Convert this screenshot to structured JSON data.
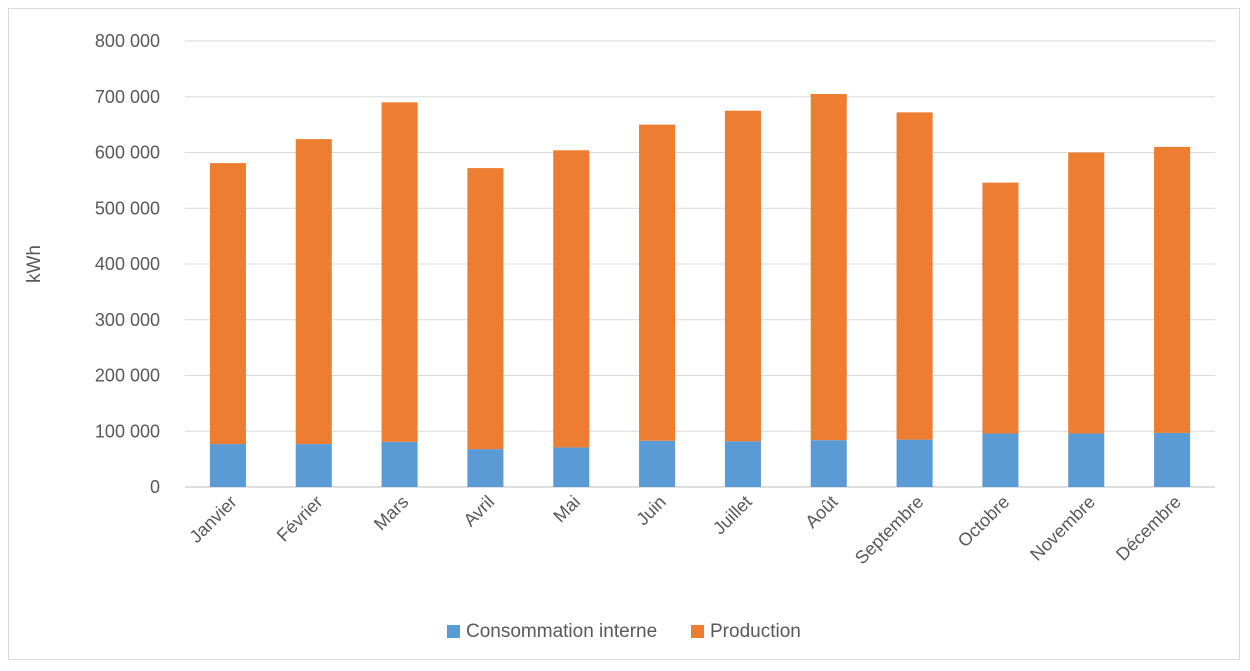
{
  "chart_data": {
    "type": "bar",
    "stacked": true,
    "categories": [
      "Janvier",
      "Février",
      "Mars",
      "Avril",
      "Mai",
      "Juin",
      "Juillet",
      "Août",
      "Septembre",
      "Octobre",
      "Novembre",
      "Décembre"
    ],
    "series": [
      {
        "name": "Consommation interne",
        "color": "#5b9bd5",
        "values": [
          77000,
          77000,
          81000,
          68000,
          71000,
          83000,
          82000,
          84000,
          85000,
          96000,
          96000,
          97000
        ]
      },
      {
        "name": "Production",
        "color": "#ed7d31",
        "values": [
          504000,
          547000,
          609000,
          504000,
          533000,
          567000,
          593000,
          621000,
          587000,
          450000,
          504000,
          513000
        ]
      }
    ],
    "title": "",
    "xlabel": "",
    "ylabel": "kWh",
    "ylim": [
      0,
      800000
    ],
    "yticks": [
      "0",
      "100 000",
      "200 000",
      "300 000",
      "400 000",
      "500 000",
      "600 000",
      "700 000",
      "800 000"
    ],
    "grid": true,
    "legend_position": "bottom"
  }
}
